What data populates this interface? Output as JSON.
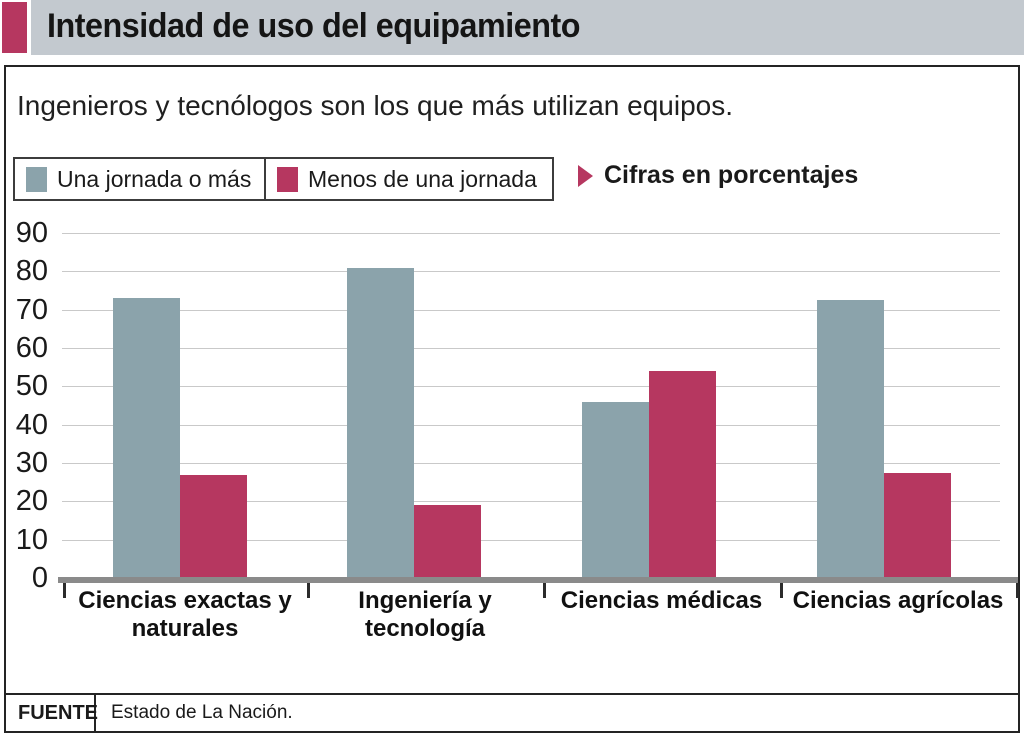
{
  "header": {
    "title": "Intensidad de uso del equipamiento"
  },
  "subtitle": "Ingenieros y tecnólogos son los que más utilizan equipos.",
  "legend": {
    "items": [
      {
        "label": "Una jornada o más",
        "color": "#8ba3ab"
      },
      {
        "label": "Menos de una jornada",
        "color": "#b63760"
      }
    ],
    "note": "Cifras en porcentajes",
    "note_icon": "play-arrow-icon",
    "note_icon_color": "#b63760"
  },
  "chart_data": {
    "type": "bar",
    "categories": [
      [
        "Ciencias exactas y",
        "naturales"
      ],
      [
        "Ingeniería y",
        "tecnología"
      ],
      [
        "Ciencias médicas"
      ],
      [
        "Ciencias agrícolas"
      ]
    ],
    "series": [
      {
        "name": "Una jornada o más",
        "color": "#8ba3ab",
        "values": [
          73,
          81,
          46,
          72.5
        ]
      },
      {
        "name": "Menos de una jornada",
        "color": "#b63760",
        "values": [
          27,
          19,
          54,
          27.5
        ]
      }
    ],
    "title": "Intensidad de uso del equipamiento",
    "xlabel": "",
    "ylabel": "",
    "unit": "porcentajes",
    "ylim": [
      0,
      90
    ],
    "yticks": [
      0,
      10,
      20,
      30,
      40,
      50,
      60,
      70,
      80,
      90
    ],
    "grid": true,
    "legend_position": "top"
  },
  "footer": {
    "source_label": "FUENTE",
    "source_text": "Estado de La Nación."
  },
  "colors": {
    "accent": "#b63760",
    "bar_gray": "#8ba3ab",
    "header_bg": "#c3c9cf",
    "gridline": "#c9c9c9",
    "baseline": "#8a8a8a",
    "border": "#242424",
    "text": "#1a1a1a"
  }
}
